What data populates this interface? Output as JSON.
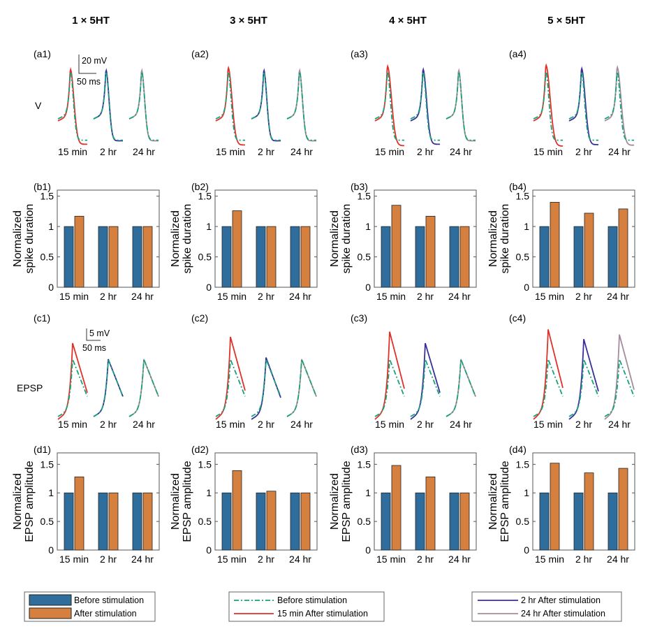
{
  "column_headers": [
    "1 × 5HT",
    "3 × 5HT",
    "4 × 5HT",
    "5 × 5HT"
  ],
  "row_labels": {
    "voltage": "V",
    "epsp": "EPSP"
  },
  "colors": {
    "before_bar": "#2f6e9c",
    "after_bar": "#d5803f",
    "before_trace": "#14a37a",
    "min15_trace": "#e03128",
    "hr2_trace": "#3a2f98",
    "hr24_trace": "#a48c9a"
  },
  "scale_bars": {
    "voltage": {
      "amplitude": "20 mV",
      "time": "50 ms"
    },
    "epsp": {
      "amplitude": "5 mV",
      "time": "50 ms"
    }
  },
  "legends": {
    "bars": [
      "Before stimulation",
      "After stimulation"
    ],
    "traces_left": [
      "Before stimulation",
      "15 min After stimulation"
    ],
    "traces_right": [
      "2 hr After stimulation",
      "24 hr After stimulation"
    ]
  },
  "chart_data": [
    {
      "panel": "(a1)",
      "type": "line",
      "row": "voltage",
      "categories": [
        "15 min",
        "2 hr",
        "24 hr"
      ],
      "relative_duration": [
        1.17,
        1,
        1
      ]
    },
    {
      "panel": "(a2)",
      "type": "line",
      "row": "voltage",
      "categories": [
        "15 min",
        "2 hr",
        "24 hr"
      ],
      "relative_duration": [
        1.26,
        1,
        1
      ]
    },
    {
      "panel": "(a3)",
      "type": "line",
      "row": "voltage",
      "categories": [
        "15 min",
        "2 hr",
        "24 hr"
      ],
      "relative_duration": [
        1.35,
        1.17,
        1
      ]
    },
    {
      "panel": "(a4)",
      "type": "line",
      "row": "voltage",
      "categories": [
        "15 min",
        "2 hr",
        "24 hr"
      ],
      "relative_duration": [
        1.4,
        1.22,
        1.29
      ]
    },
    {
      "panel": "(b1)",
      "type": "bar",
      "ylabel": [
        "Normalized",
        "spike duration"
      ],
      "categories": [
        "15 min",
        "2 hr",
        "24 hr"
      ],
      "ylim": [
        0,
        1.6
      ],
      "yticks": [
        "0",
        "0.5",
        "1",
        "1.5"
      ],
      "series": [
        {
          "name": "Before stimulation",
          "values": [
            1,
            1,
            1
          ]
        },
        {
          "name": "After stimulation",
          "values": [
            1.17,
            1,
            1
          ]
        }
      ]
    },
    {
      "panel": "(b2)",
      "type": "bar",
      "ylabel": [
        "Normalized",
        "spike duration"
      ],
      "categories": [
        "15 min",
        "2 hr",
        "24 hr"
      ],
      "ylim": [
        0,
        1.6
      ],
      "yticks": [
        "0",
        "0.5",
        "1",
        "1.5"
      ],
      "series": [
        {
          "name": "Before stimulation",
          "values": [
            1,
            1,
            1
          ]
        },
        {
          "name": "After stimulation",
          "values": [
            1.26,
            1,
            1
          ]
        }
      ]
    },
    {
      "panel": "(b3)",
      "type": "bar",
      "ylabel": [
        "Normalized",
        "spike duration"
      ],
      "categories": [
        "15 min",
        "2 hr",
        "24 hr"
      ],
      "ylim": [
        0,
        1.6
      ],
      "yticks": [
        "0",
        "0.5",
        "1",
        "1.5"
      ],
      "series": [
        {
          "name": "Before stimulation",
          "values": [
            1,
            1,
            1
          ]
        },
        {
          "name": "After stimulation",
          "values": [
            1.35,
            1.17,
            1
          ]
        }
      ]
    },
    {
      "panel": "(b4)",
      "type": "bar",
      "ylabel": [
        "Normalized",
        "spike duration"
      ],
      "categories": [
        "15 min",
        "2 hr",
        "24 hr"
      ],
      "ylim": [
        0,
        1.6
      ],
      "yticks": [
        "0",
        "0.5",
        "1",
        "1.5"
      ],
      "series": [
        {
          "name": "Before stimulation",
          "values": [
            1,
            1,
            1
          ]
        },
        {
          "name": "After stimulation",
          "values": [
            1.4,
            1.22,
            1.29
          ]
        }
      ]
    },
    {
      "panel": "(c1)",
      "type": "line",
      "row": "epsp",
      "categories": [
        "15 min",
        "2 hr",
        "24 hr"
      ],
      "relative_amplitude": [
        1.28,
        1,
        1
      ]
    },
    {
      "panel": "(c2)",
      "type": "line",
      "row": "epsp",
      "categories": [
        "15 min",
        "2 hr",
        "24 hr"
      ],
      "relative_amplitude": [
        1.39,
        1.03,
        1
      ]
    },
    {
      "panel": "(c3)",
      "type": "line",
      "row": "epsp",
      "categories": [
        "15 min",
        "2 hr",
        "24 hr"
      ],
      "relative_amplitude": [
        1.48,
        1.28,
        1
      ]
    },
    {
      "panel": "(c4)",
      "type": "line",
      "row": "epsp",
      "categories": [
        "15 min",
        "2 hr",
        "24 hr"
      ],
      "relative_amplitude": [
        1.52,
        1.35,
        1.43
      ]
    },
    {
      "panel": "(d1)",
      "type": "bar",
      "ylabel": [
        "Normalized",
        "EPSP amplitude"
      ],
      "categories": [
        "15 min",
        "2 hr",
        "24 hr"
      ],
      "ylim": [
        0,
        1.7
      ],
      "yticks": [
        "0",
        "0.5",
        "1",
        "1.5"
      ],
      "series": [
        {
          "name": "Before stimulation",
          "values": [
            1,
            1,
            1
          ]
        },
        {
          "name": "After stimulation",
          "values": [
            1.28,
            1,
            1
          ]
        }
      ]
    },
    {
      "panel": "(d2)",
      "type": "bar",
      "ylabel": [
        "Normalized",
        "EPSP amplitude"
      ],
      "categories": [
        "15 min",
        "2 hr",
        "24 hr"
      ],
      "ylim": [
        0,
        1.7
      ],
      "yticks": [
        "0",
        "0.5",
        "1",
        "1.5"
      ],
      "series": [
        {
          "name": "Before stimulation",
          "values": [
            1,
            1,
            1
          ]
        },
        {
          "name": "After stimulation",
          "values": [
            1.39,
            1.03,
            1
          ]
        }
      ]
    },
    {
      "panel": "(d3)",
      "type": "bar",
      "ylabel": [
        "Normalized",
        "EPSP amplitude"
      ],
      "categories": [
        "15 min",
        "2 hr",
        "24 hr"
      ],
      "ylim": [
        0,
        1.7
      ],
      "yticks": [
        "0",
        "0.5",
        "1",
        "1.5"
      ],
      "series": [
        {
          "name": "Before stimulation",
          "values": [
            1,
            1,
            1
          ]
        },
        {
          "name": "After stimulation",
          "values": [
            1.48,
            1.28,
            1
          ]
        }
      ]
    },
    {
      "panel": "(d4)",
      "type": "bar",
      "ylabel": [
        "Normalized",
        "EPSP amplitude"
      ],
      "categories": [
        "15 min",
        "2 hr",
        "24 hr"
      ],
      "ylim": [
        0,
        1.7
      ],
      "yticks": [
        "0",
        "0.5",
        "1",
        "1.5"
      ],
      "series": [
        {
          "name": "Before stimulation",
          "values": [
            1,
            1,
            1
          ]
        },
        {
          "name": "After stimulation",
          "values": [
            1.52,
            1.35,
            1.43
          ]
        }
      ]
    }
  ]
}
